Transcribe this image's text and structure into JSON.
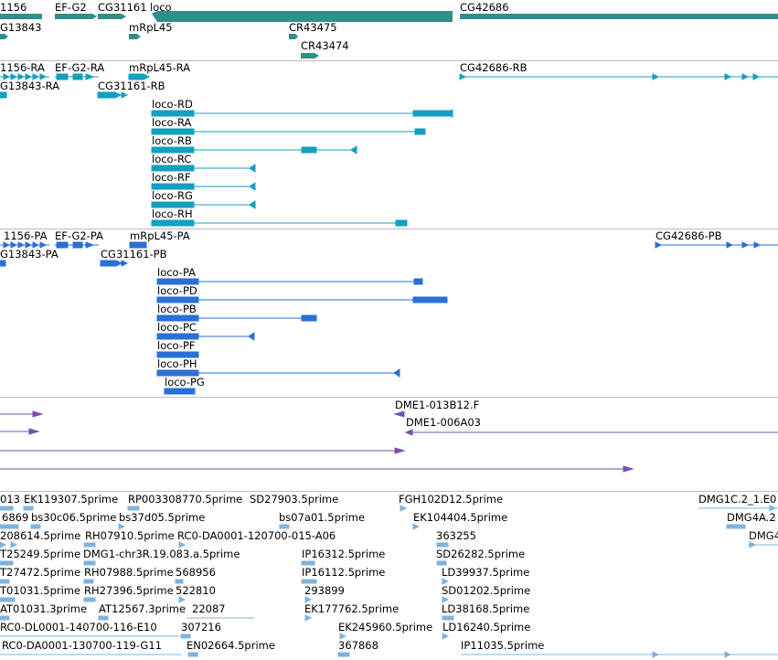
{
  "colors": {
    "gene": "#2f8f8a",
    "transcript": "#11a0bf",
    "protein": "#2a6fd6",
    "clone": "#7a4fb0",
    "est": "#7fb3dd",
    "separator": "#bdbdbd"
  },
  "genes": {
    "labels": [
      "1156",
      "EF-G2",
      "CG31161",
      "loco",
      "CG42686",
      "G13843",
      "mRpL45",
      "CR43475",
      "CR43474"
    ]
  },
  "transcripts": {
    "labels": [
      "1156-RA",
      "EF-G2-RA",
      "mRpL45-RA",
      "CG42686-RB",
      "G13843-RA",
      "CG31161-RB",
      "loco-RD",
      "loco-RA",
      "loco-RB",
      "loco-RC",
      "loco-RF",
      "loco-RG",
      "loco-RH"
    ]
  },
  "proteins": {
    "labels": [
      "1156-PA",
      "EF-G2-PA",
      "mRpL45-PA",
      "CG42686-PB",
      "G13843-PA",
      "CG31161-PB",
      "loco-PA",
      "loco-PD",
      "loco-PB",
      "loco-PC",
      "loco-PF",
      "loco-PH",
      "loco-PG"
    ]
  },
  "clones": {
    "labels": [
      "DME1-013B12.F",
      "DME1-006A03"
    ]
  },
  "ests": {
    "labels": [
      "013",
      "EK119307.5prime",
      "RP003308770.5prime",
      "SD27903.5prime",
      "FGH102D12.5prime",
      "DMG1C.2_1.E0",
      "6869",
      "bs30c06.5prime",
      "bs37d05.5prime",
      "bs07a01.5prime",
      "EK104404.5prime",
      "DMG4A.2",
      "208614.5prime",
      "RH07910.5prime",
      "RC0-DA0001-120700-015-A06",
      "363255",
      "DMG4",
      "T25249.5prime",
      "DMG1-chr3R.19.083.a.5prime",
      "IP16312.5prime",
      "SD26282.5prime",
      "T27472.5prime",
      "RH07988.5prime",
      "568956",
      "IP16112.5prime",
      "LD39937.5prime",
      "T01031.5prime",
      "RH27396.5prime",
      "522810",
      "293899",
      "SD01202.5prime",
      "AT01031.3prime",
      "AT12567.3prime",
      "22087",
      "EK177762.5prime",
      "LD38168.5prime",
      "RC0-DL0001-140700-116-E10",
      "307216",
      "EK245960.5prime",
      "LD16240.5prime",
      "RC0-DA0001-130700-119-G11",
      "EN02664.5prime",
      "367868",
      "IP11035.5prime"
    ]
  }
}
